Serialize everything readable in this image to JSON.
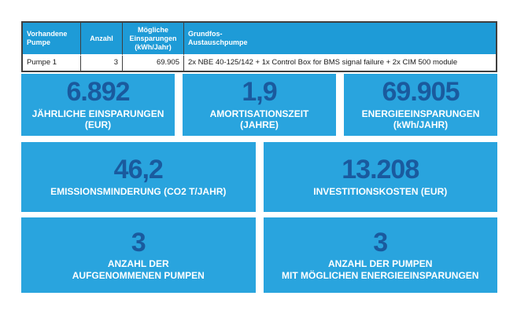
{
  "colors": {
    "header_blue": "#1E9BD7",
    "tile_blue": "#29A4DE",
    "value_dark_blue": "#1A5A9E",
    "border_dark": "#3F3F3F",
    "label_white": "#FFFFFF"
  },
  "table": {
    "columns": [
      {
        "label": "Vorhandene\nPumpe"
      },
      {
        "label": "Anzahl"
      },
      {
        "label": "Mögliche\nEinsparungen\n(kWh/Jahr)"
      },
      {
        "label": "Grundfos-\nAustauschpumpe"
      }
    ],
    "rows": [
      {
        "pump": "Pumpe 1",
        "count": "3",
        "savings": "69.905",
        "replacement": "2x NBE 40-125/142 + 1x Control Box for BMS signal failure + 2x CIM 500 module"
      }
    ]
  },
  "tiles": [
    {
      "value": "6.892",
      "label": "JÄHRLICHE EINSPARUNGEN\n(EUR)"
    },
    {
      "value": "1,9",
      "label": "AMORTISATIONSZEIT\n(JAHRE)"
    },
    {
      "value": "69.905",
      "label": "ENERGIEEINSPARUNGEN\n(kWh/JAHR)"
    },
    {
      "value": "46,2",
      "label": "EMISSIONSMINDERUNG (CO2 T/JAHR)"
    },
    {
      "value": "13.208",
      "label": "INVESTITIONSKOSTEN (EUR)"
    },
    {
      "value": "3",
      "label": "ANZAHL DER\nAUFGENOMMENEN PUMPEN"
    },
    {
      "value": "3",
      "label": "ANZAHL DER PUMPEN\nMIT MÖGLICHEN ENERGIEEINSPARUNGEN"
    }
  ]
}
